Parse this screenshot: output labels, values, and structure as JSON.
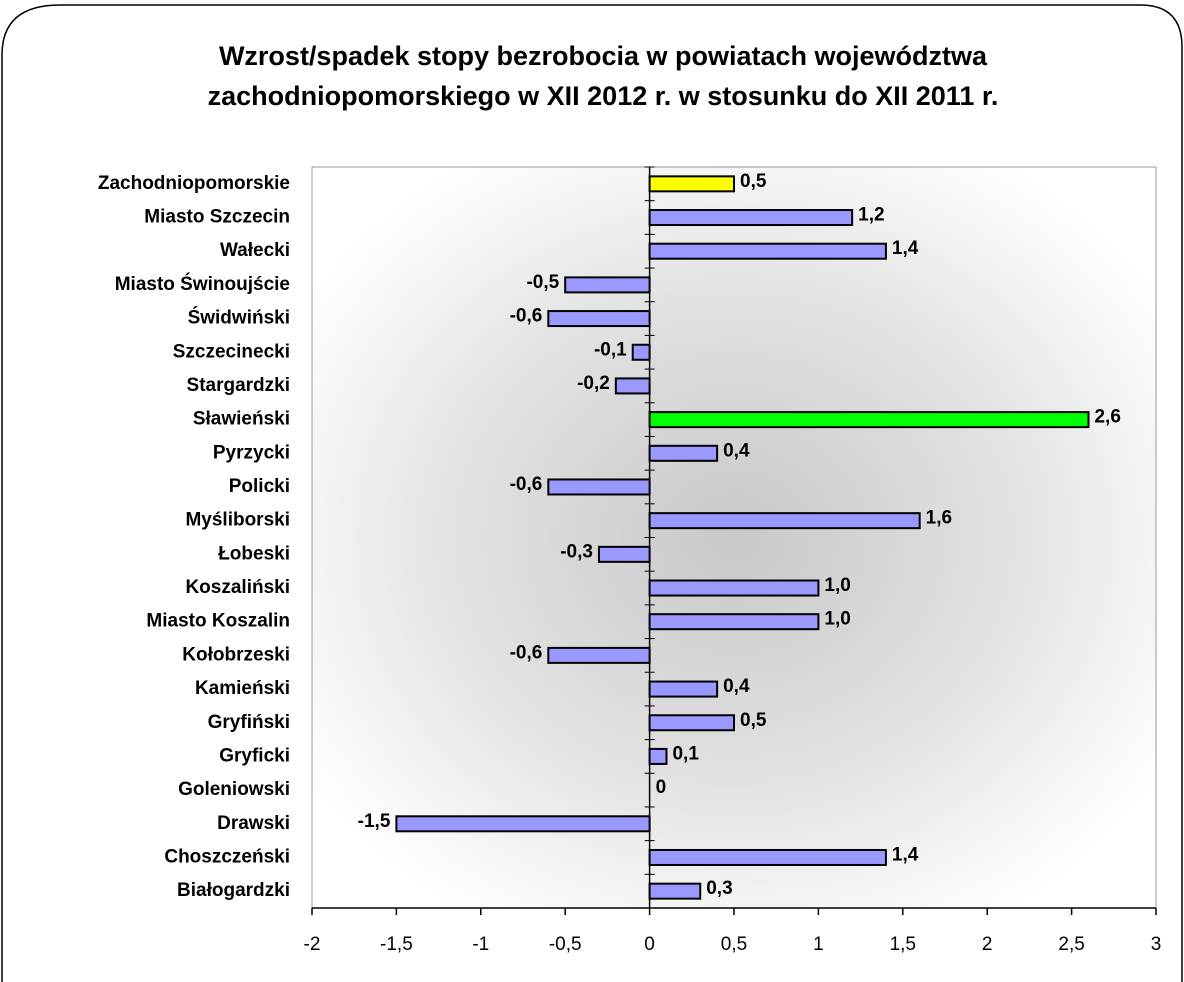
{
  "chart_data": {
    "type": "barh",
    "title": [
      "Wzrost/spadek stopy bezrobocia w powiatach województwa",
      "zachodniopomorskiego w XII 2012 r. w stosunku do XII 2011 r."
    ],
    "categories": [
      "Zachodniopomorskie",
      "Miasto Szczecin",
      "Wałecki",
      "Miasto Świnoujście",
      "Świdwiński",
      "Szczecinecki",
      "Stargardzki",
      "Sławieński",
      "Pyrzycki",
      "Policki",
      "Myśliborski",
      "Łobeski",
      "Koszaliński",
      "Miasto Koszalin",
      "Kołobrzeski",
      "Kamieński",
      "Gryfiński",
      "Gryficki",
      "Goleniowski",
      "Drawski",
      "Choszczeński",
      "Białogardzki"
    ],
    "values": [
      0.5,
      1.2,
      1.4,
      -0.5,
      -0.6,
      -0.1,
      -0.2,
      2.6,
      0.4,
      -0.6,
      1.6,
      -0.3,
      1.0,
      1.0,
      -0.6,
      0.4,
      0.5,
      0.1,
      0,
      -1.5,
      1.4,
      0.3
    ],
    "value_labels": [
      "0,5",
      "1,2",
      "1,4",
      "-0,5",
      "-0,6",
      "-0,1",
      "-0,2",
      "2,6",
      "0,4",
      "-0,6",
      "1,6",
      "-0,3",
      "1,0",
      "1,0",
      "-0,6",
      "0,4",
      "0,5",
      "0,1",
      "0",
      "-1,5",
      "1,4",
      "0,3"
    ],
    "colors": [
      "#ffff00",
      "#9999ff",
      "#9999ff",
      "#9999ff",
      "#9999ff",
      "#9999ff",
      "#9999ff",
      "#00ff00",
      "#9999ff",
      "#9999ff",
      "#9999ff",
      "#9999ff",
      "#9999ff",
      "#9999ff",
      "#9999ff",
      "#9999ff",
      "#9999ff",
      "#9999ff",
      "#9999ff",
      "#9999ff",
      "#9999ff",
      "#9999ff"
    ],
    "xlim": [
      -2,
      3
    ],
    "xticks": [
      -2,
      {
        "value": -1.5,
        "label": "-1,5"
      },
      -1,
      {
        "value": -0.5,
        "label": "-0,5"
      },
      0,
      {
        "value": 0.5,
        "label": "0,5"
      },
      1,
      {
        "value": 1.5,
        "label": "1,5"
      },
      2,
      {
        "value": 2.5,
        "label": "2,5"
      },
      3
    ]
  }
}
